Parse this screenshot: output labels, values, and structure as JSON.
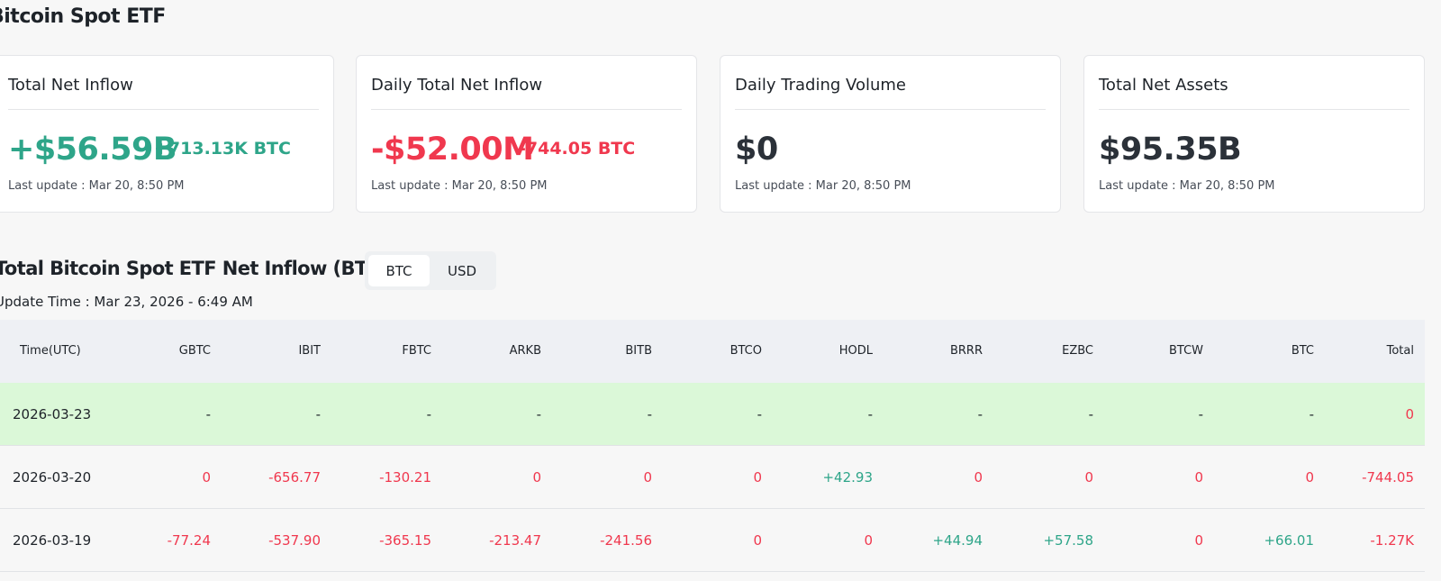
{
  "page_title": "Bitcoin Spot ETF",
  "cards": [
    {
      "title": "Total Net Inflow",
      "value": "+$56.59B",
      "sub": "+713.13K BTC",
      "tone": "green",
      "update": "Last update : Mar 20, 8:50 PM"
    },
    {
      "title": "Daily Total Net Inflow",
      "value": "-$52.00M",
      "sub": "-744.05 BTC",
      "tone": "red",
      "update": "Last update : Mar 20, 8:50 PM"
    },
    {
      "title": "Daily Trading Volume",
      "value": "$0",
      "sub": "",
      "tone": "dark",
      "update": "Last update : Mar 20, 8:50 PM"
    },
    {
      "title": "Total Net Assets",
      "value": "$95.35B",
      "sub": "",
      "tone": "dark",
      "update": "Last update : Mar 20, 8:50 PM"
    }
  ],
  "section": {
    "title": "Total Bitcoin Spot ETF Net Inflow (BTC)",
    "toggle": {
      "options": [
        "BTC",
        "USD"
      ],
      "selected": "BTC"
    },
    "update_time": "Update Time : Mar 23, 2026 - 6:49 AM"
  },
  "table": {
    "columns": [
      "Time(UTC)",
      "GBTC",
      "IBIT",
      "FBTC",
      "ARKB",
      "BITB",
      "BTCO",
      "HODL",
      "BRRR",
      "EZBC",
      "BTCW",
      "BTC",
      "Total"
    ],
    "rows": [
      {
        "date": "2026-03-23",
        "highlight": true,
        "values": [
          "-",
          "-",
          "-",
          "-",
          "-",
          "-",
          "-",
          "-",
          "-",
          "-",
          "-",
          "0"
        ]
      },
      {
        "date": "2026-03-20",
        "highlight": false,
        "values": [
          "0",
          "-656.77",
          "-130.21",
          "0",
          "0",
          "0",
          "+42.93",
          "0",
          "0",
          "0",
          "0",
          "-744.05"
        ]
      },
      {
        "date": "2026-03-19",
        "highlight": false,
        "values": [
          "-77.24",
          "-537.90",
          "-365.15",
          "-213.47",
          "-241.56",
          "0",
          "0",
          "+44.94",
          "+57.58",
          "0",
          "+66.01",
          "-1.27K"
        ]
      }
    ]
  },
  "colors": {
    "positive": "#2ea589",
    "negative": "#f0384e",
    "highlight_row": "#dbf8d8"
  }
}
